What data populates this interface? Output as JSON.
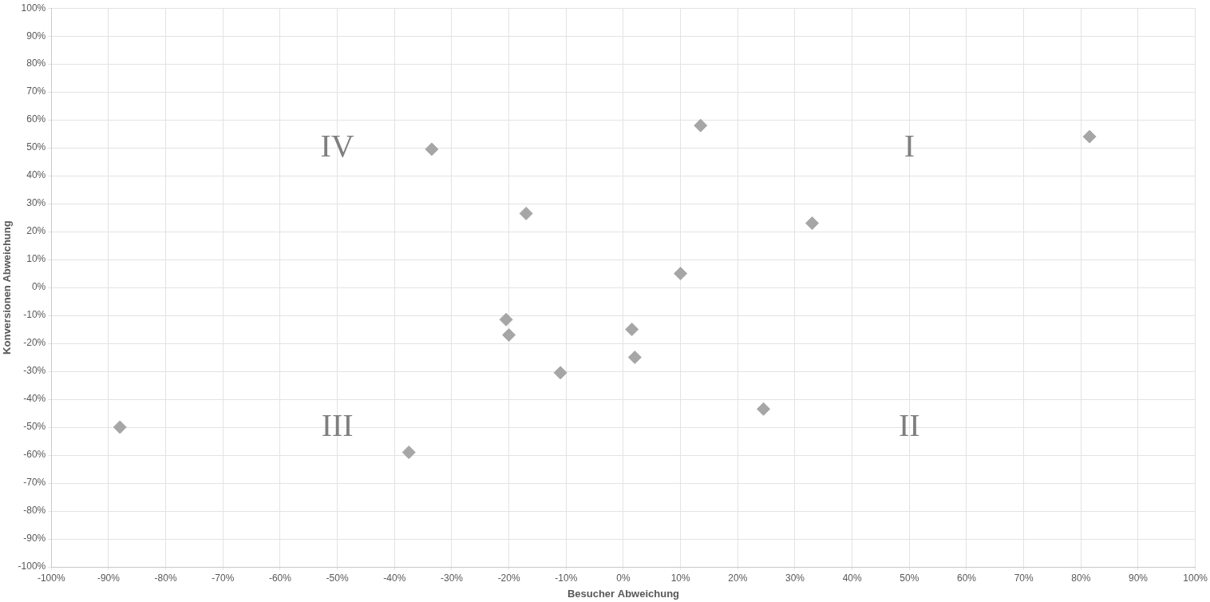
{
  "chart_data": {
    "type": "scatter",
    "x_label": "Besucher Abweichung",
    "y_label": "Konversionen Abweichung",
    "x": [
      -88,
      -37.5,
      -33.5,
      -17,
      -20.5,
      -20,
      -11,
      1.5,
      2,
      10,
      13.5,
      33,
      24.5,
      81.5
    ],
    "values": [
      -50,
      -59,
      49.5,
      26.5,
      -11.5,
      -17,
      -30.5,
      -15,
      -25,
      5,
      58,
      23,
      -43.5,
      54
    ],
    "color": "#a6a6a6",
    "marker": "diamond",
    "grid": true,
    "xlim": [
      -100,
      100
    ],
    "ylim": [
      -100,
      100
    ],
    "xticks": [
      {
        "value": -100,
        "label": "-100%"
      },
      {
        "value": -90,
        "label": "-90%"
      },
      {
        "value": -80,
        "label": "-80%"
      },
      {
        "value": -70,
        "label": "-70%"
      },
      {
        "value": -60,
        "label": "-60%"
      },
      {
        "value": -50,
        "label": "-50%"
      },
      {
        "value": -40,
        "label": "-40%"
      },
      {
        "value": -30,
        "label": "-30%"
      },
      {
        "value": -20,
        "label": "-20%"
      },
      {
        "value": -10,
        "label": "-10%"
      },
      {
        "value": 0,
        "label": "0%"
      },
      {
        "value": 10,
        "label": "10%"
      },
      {
        "value": 20,
        "label": "20%"
      },
      {
        "value": 30,
        "label": "30%"
      },
      {
        "value": 40,
        "label": "40%"
      },
      {
        "value": 50,
        "label": "50%"
      },
      {
        "value": 60,
        "label": "60%"
      },
      {
        "value": 70,
        "label": "70%"
      },
      {
        "value": 80,
        "label": "80%"
      },
      {
        "value": 90,
        "label": "90%"
      },
      {
        "value": 100,
        "label": "100%"
      }
    ],
    "yticks": [
      {
        "value": -100,
        "label": "-100%"
      },
      {
        "value": -90,
        "label": "-90%"
      },
      {
        "value": -80,
        "label": "-80%"
      },
      {
        "value": -70,
        "label": "-70%"
      },
      {
        "value": -60,
        "label": "-60%"
      },
      {
        "value": -50,
        "label": "-50%"
      },
      {
        "value": -40,
        "label": "-40%"
      },
      {
        "value": -30,
        "label": "-30%"
      },
      {
        "value": -20,
        "label": "-20%"
      },
      {
        "value": -10,
        "label": "-10%"
      },
      {
        "value": 0,
        "label": "0%"
      },
      {
        "value": 10,
        "label": "10%"
      },
      {
        "value": 20,
        "label": "20%"
      },
      {
        "value": 30,
        "label": "30%"
      },
      {
        "value": 40,
        "label": "40%"
      },
      {
        "value": 50,
        "label": "50%"
      },
      {
        "value": 60,
        "label": "60%"
      },
      {
        "value": 70,
        "label": "70%"
      },
      {
        "value": 80,
        "label": "80%"
      },
      {
        "value": 90,
        "label": "90%"
      },
      {
        "value": 100,
        "label": "100%"
      }
    ],
    "annotations": [
      {
        "text": "IV",
        "x": -50,
        "y": 50
      },
      {
        "text": "I",
        "x": 50,
        "y": 50
      },
      {
        "text": "III",
        "x": -50,
        "y": -50
      },
      {
        "text": "II",
        "x": 50,
        "y": -50
      }
    ]
  }
}
